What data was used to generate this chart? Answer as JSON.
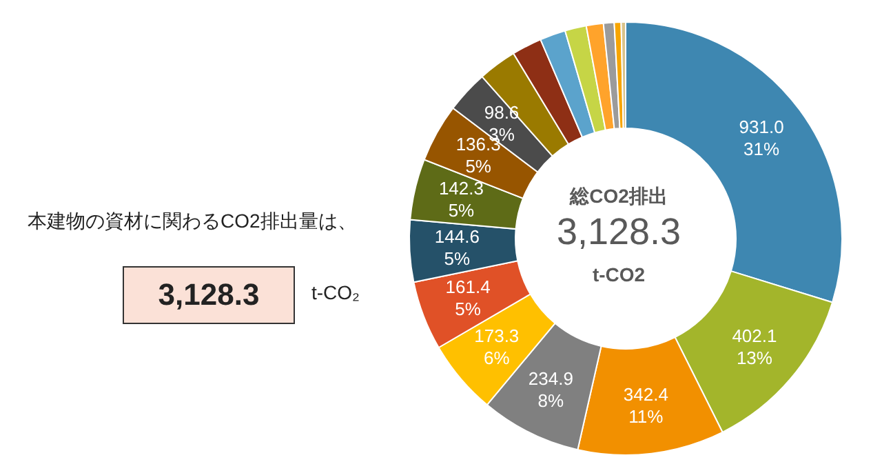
{
  "chart_data": {
    "type": "donut",
    "categories": [
      null,
      null,
      null,
      null,
      null,
      null,
      null,
      null,
      null,
      null,
      null,
      null,
      null,
      null,
      null,
      null,
      null,
      null
    ],
    "values": [
      931.0,
      402.1,
      342.4,
      234.9,
      173.3,
      161.4,
      144.6,
      142.3,
      136.3,
      98.6,
      90,
      70,
      60,
      50,
      40,
      25,
      16,
      10.4
    ],
    "colors": [
      "#3e87b1",
      "#a3b52b",
      "#f29000",
      "#808080",
      "#ffc000",
      "#e05127",
      "#255169",
      "#5e6b17",
      "#975500",
      "#4b4b4b",
      "#9a7a00",
      "#8e2f15",
      "#5ba3cc",
      "#c6d546",
      "#ffa32b",
      "#9b9b9b",
      "#f7a500",
      "#d9c38b"
    ],
    "value_labels": [
      "931.0\n31%",
      "402.1\n13%",
      "342.4\n11%",
      "234.9\n8%",
      "173.3\n6%",
      "161.4\n5%",
      "144.6\n5%",
      "142.3\n5%",
      "136.3\n5%",
      "98.6\n3%",
      null,
      null,
      null,
      null,
      null,
      null,
      null,
      null
    ],
    "annotations": [
      "本建物の資材に関わるCO2排出量は、",
      "3,128.3",
      "t-CO₂",
      "総CO2排出",
      "3,128.3",
      "t-CO2"
    ],
    "legend": false
  }
}
